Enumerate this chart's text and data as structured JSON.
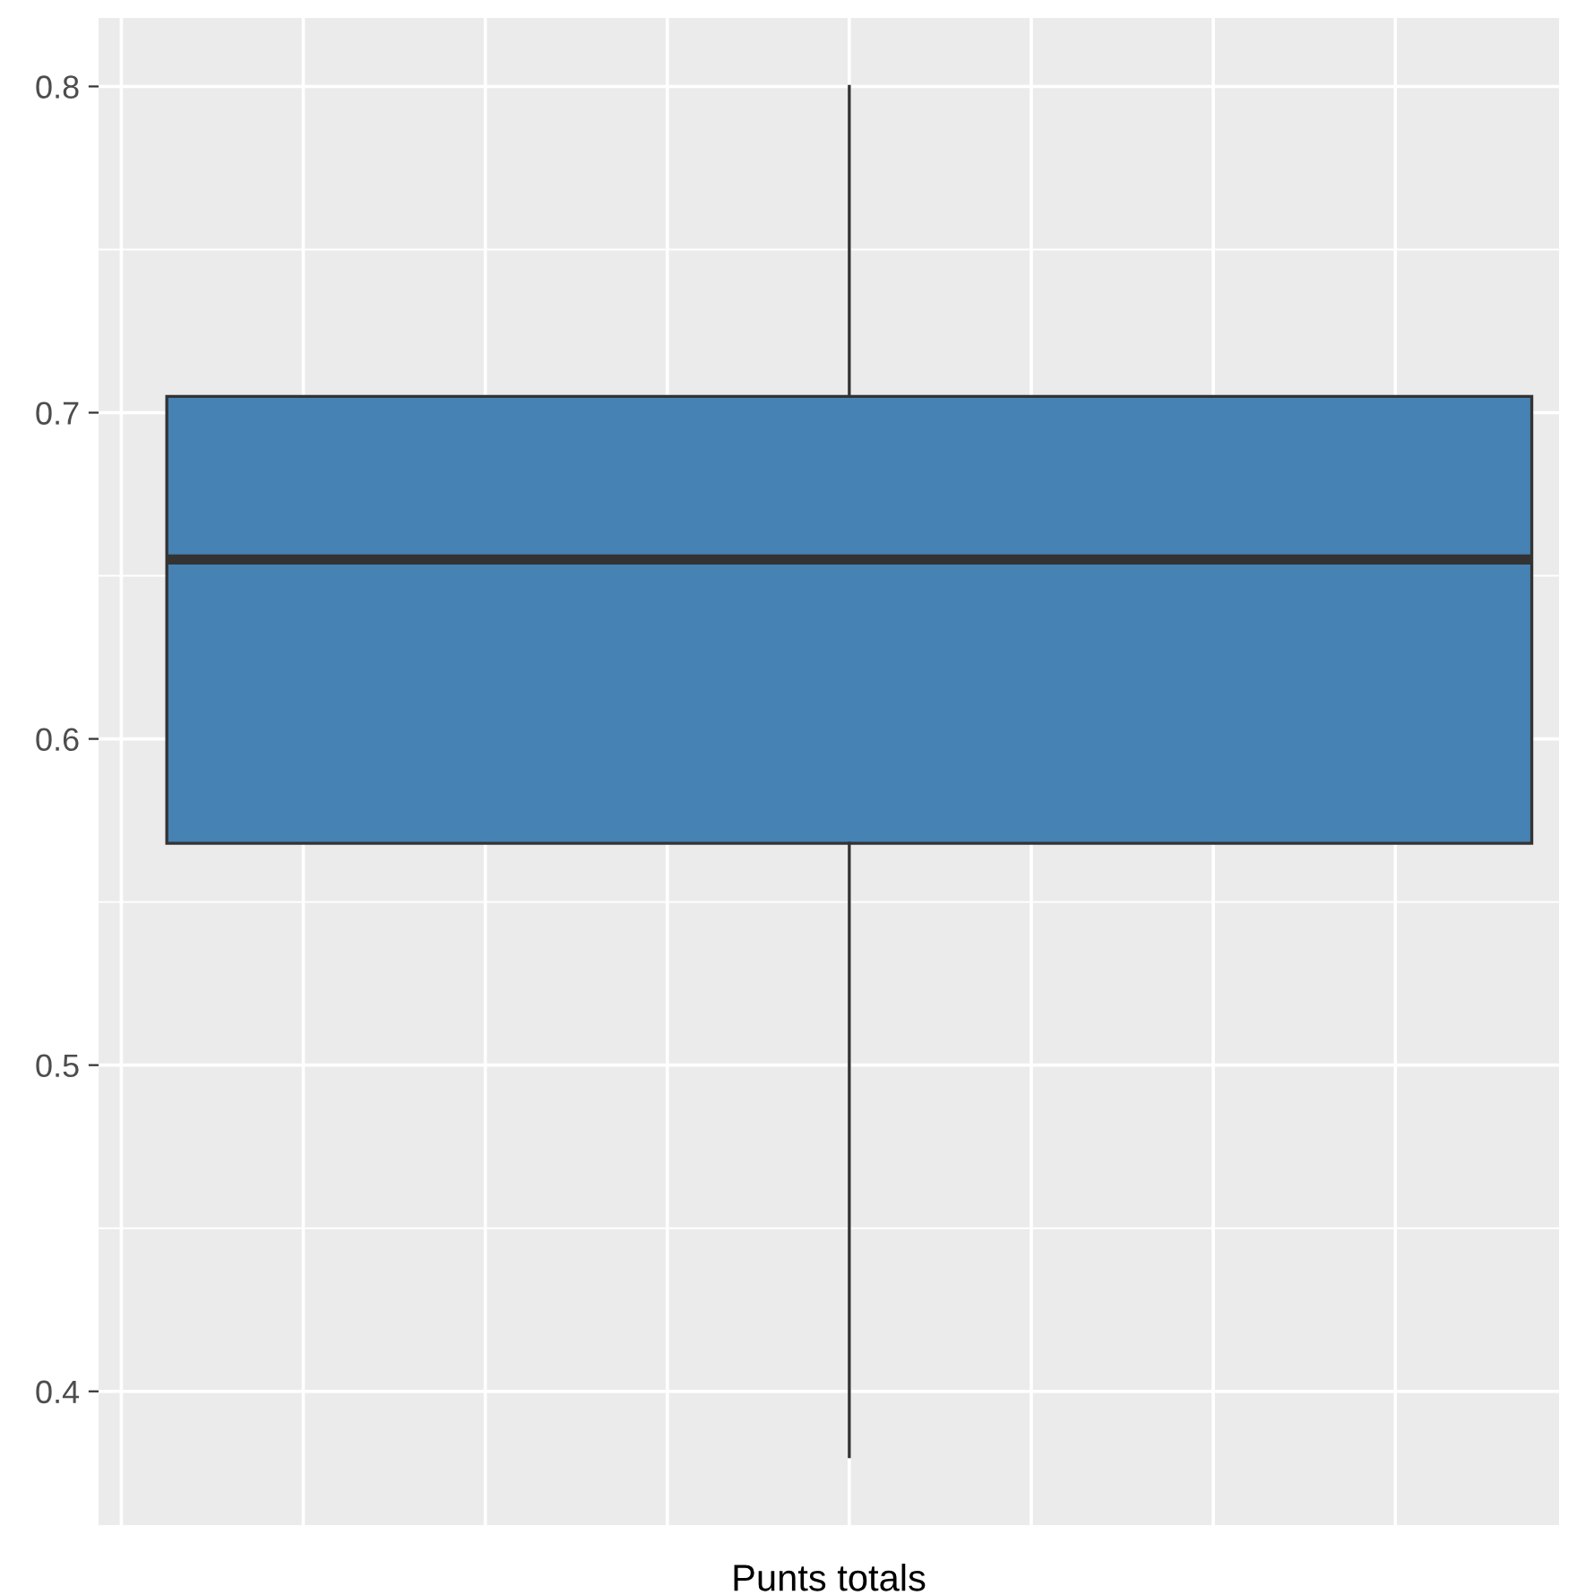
{
  "chart_data": {
    "type": "box",
    "xlabel": "Punts totals",
    "categories": [
      null
    ],
    "boxes": [
      {
        "low": 0.38,
        "q1": 0.568,
        "median": 0.655,
        "q3": 0.705,
        "high": 0.8
      }
    ],
    "color": "#4682b4",
    "ylim": [
      0.359,
      0.821
    ],
    "yticks": [
      0.4,
      0.5,
      0.6,
      0.7,
      0.8
    ],
    "tick_labels": "y",
    "grid": true
  }
}
